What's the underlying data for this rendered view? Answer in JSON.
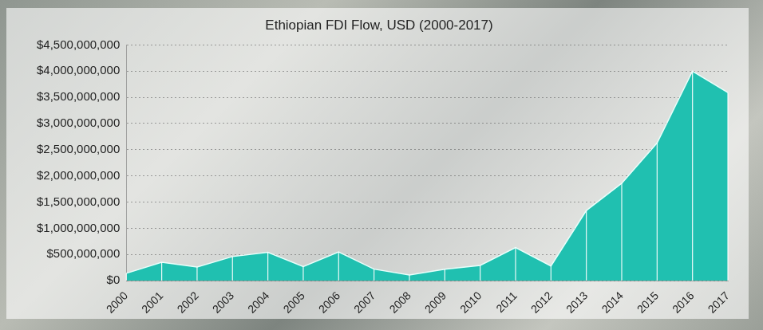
{
  "chart_data": {
    "type": "area",
    "title": "Ethiopian FDI Flow, USD (2000-2017)",
    "categories": [
      "2000",
      "2001",
      "2002",
      "2003",
      "2004",
      "2005",
      "2006",
      "2007",
      "2008",
      "2009",
      "2010",
      "2011",
      "2012",
      "2013",
      "2014",
      "2015",
      "2016",
      "2017"
    ],
    "values": [
      140000000,
      350000000,
      260000000,
      460000000,
      540000000,
      270000000,
      550000000,
      220000000,
      110000000,
      220000000,
      290000000,
      630000000,
      280000000,
      1340000000,
      1860000000,
      2630000000,
      4000000000,
      3590000000
    ],
    "color": "#20c0b0",
    "ylim": [
      0,
      4500000000
    ],
    "yticks": [
      {
        "value": 0,
        "label": "$0"
      },
      {
        "value": 500000000,
        "label": "$500,000,000"
      },
      {
        "value": 1000000000,
        "label": "$1,000,000,000"
      },
      {
        "value": 1500000000,
        "label": "$1,500,000,000"
      },
      {
        "value": 2000000000,
        "label": "$2,000,000,000"
      },
      {
        "value": 2500000000,
        "label": "$2,500,000,000"
      },
      {
        "value": 3000000000,
        "label": "$3,000,000,000"
      },
      {
        "value": 3500000000,
        "label": "$3,500,000,000"
      },
      {
        "value": 4000000000,
        "label": "$4,000,000,000"
      },
      {
        "value": 4500000000,
        "label": "$4,500,000,000"
      }
    ],
    "grid": true
  }
}
